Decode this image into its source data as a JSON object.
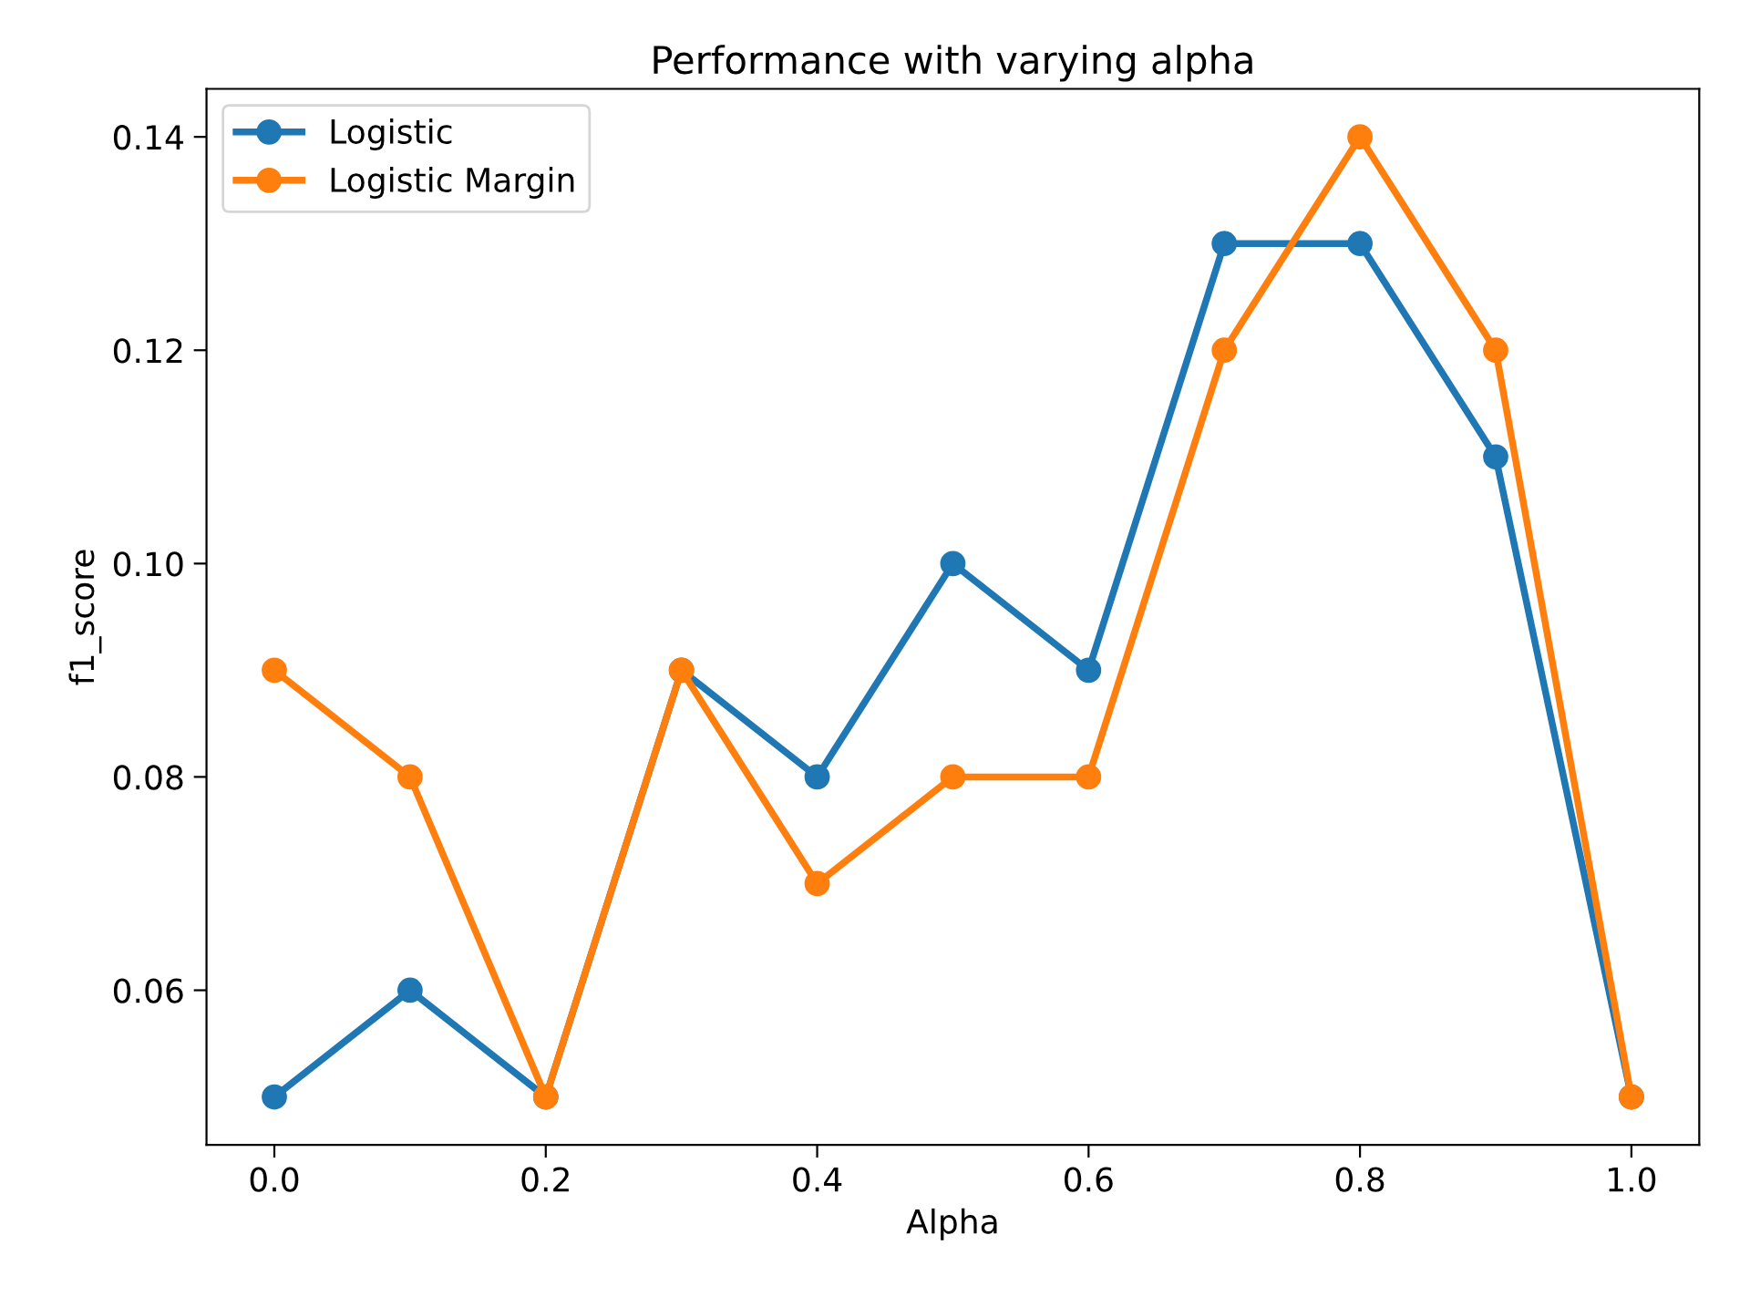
{
  "chart_data": {
    "type": "line",
    "title": "Performance with varying alpha",
    "xlabel": "Alpha",
    "ylabel": "f1_score",
    "x": [
      0.0,
      0.1,
      0.2,
      0.3,
      0.4,
      0.5,
      0.6,
      0.7,
      0.8,
      0.9,
      1.0
    ],
    "series": [
      {
        "name": "Logistic",
        "color": "#1f77b4",
        "values": [
          0.05,
          0.06,
          0.05,
          0.09,
          0.08,
          0.1,
          0.09,
          0.13,
          0.13,
          0.11,
          0.05
        ]
      },
      {
        "name": "Logistic Margin",
        "color": "#ff7f0e",
        "values": [
          0.09,
          0.08,
          0.05,
          0.09,
          0.07,
          0.08,
          0.08,
          0.12,
          0.14,
          0.12,
          0.05
        ]
      }
    ],
    "xlim": [
      -0.05,
      1.05
    ],
    "xticks": [
      {
        "value": 0.0,
        "label": "0.0"
      },
      {
        "value": 0.2,
        "label": "0.2"
      },
      {
        "value": 0.4,
        "label": "0.4"
      },
      {
        "value": 0.6,
        "label": "0.6"
      },
      {
        "value": 0.8,
        "label": "0.8"
      },
      {
        "value": 1.0,
        "label": "1.0"
      }
    ],
    "ylim": [
      0.0455,
      0.1445
    ],
    "yticks": [
      {
        "value": 0.06,
        "label": "0.06"
      },
      {
        "value": 0.08,
        "label": "0.08"
      },
      {
        "value": 0.1,
        "label": "0.10"
      },
      {
        "value": 0.12,
        "label": "0.12"
      },
      {
        "value": 0.14,
        "label": "0.14"
      }
    ],
    "grid": false,
    "legend": "top left",
    "marker": "circle",
    "line_style": "solid"
  }
}
